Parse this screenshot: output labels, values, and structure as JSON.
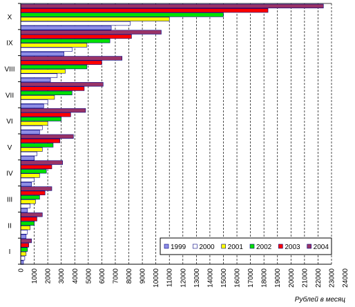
{
  "chart_data": {
    "type": "bar",
    "orientation": "horizontal",
    "categories": [
      "I",
      "II",
      "III",
      "IV",
      "V",
      "VI",
      "VII",
      "VIII",
      "IX",
      "X"
    ],
    "series": [
      {
        "name": "1999",
        "color": "#8e8ee6",
        "values": [
          200,
          400,
          500,
          800,
          1000,
          1400,
          1700,
          2200,
          3200,
          6700
        ]
      },
      {
        "name": "2000",
        "color": "#ffffff",
        "values": [
          300,
          500,
          700,
          1000,
          1200,
          1600,
          2000,
          2700,
          3800,
          8100
        ]
      },
      {
        "name": "2001",
        "color": "#ffff00",
        "values": [
          400,
          700,
          1100,
          1400,
          1600,
          2000,
          2500,
          3300,
          4900,
          11000
        ]
      },
      {
        "name": "2002",
        "color": "#00e000",
        "values": [
          500,
          1000,
          1400,
          1900,
          2400,
          3000,
          3800,
          4900,
          6600,
          15000
        ]
      },
      {
        "name": "2003",
        "color": "#ff0000",
        "values": [
          600,
          1200,
          1800,
          2300,
          2900,
          3700,
          4700,
          6000,
          8200,
          18300
        ]
      },
      {
        "name": "2004",
        "color": "#993366",
        "values": [
          800,
          1600,
          2300,
          3100,
          3900,
          4800,
          6100,
          7500,
          10400,
          22400
        ]
      }
    ],
    "xlim": [
      0,
      23000
    ],
    "x_ticks": [
      "0",
      "1000",
      "2000",
      "3000",
      "4000",
      "5000",
      "6000",
      "7000",
      "8000",
      "9000",
      "10000",
      "11000",
      "12000",
      "13000",
      "14000",
      "15000",
      "16000",
      "17000",
      "18000",
      "19000",
      "20000",
      "21000",
      "22000",
      "23000",
      "24000"
    ],
    "xlabel": "Рублей в месяц",
    "grid": "vertical dashed",
    "legend_position": "bottom-right, inside plot"
  }
}
